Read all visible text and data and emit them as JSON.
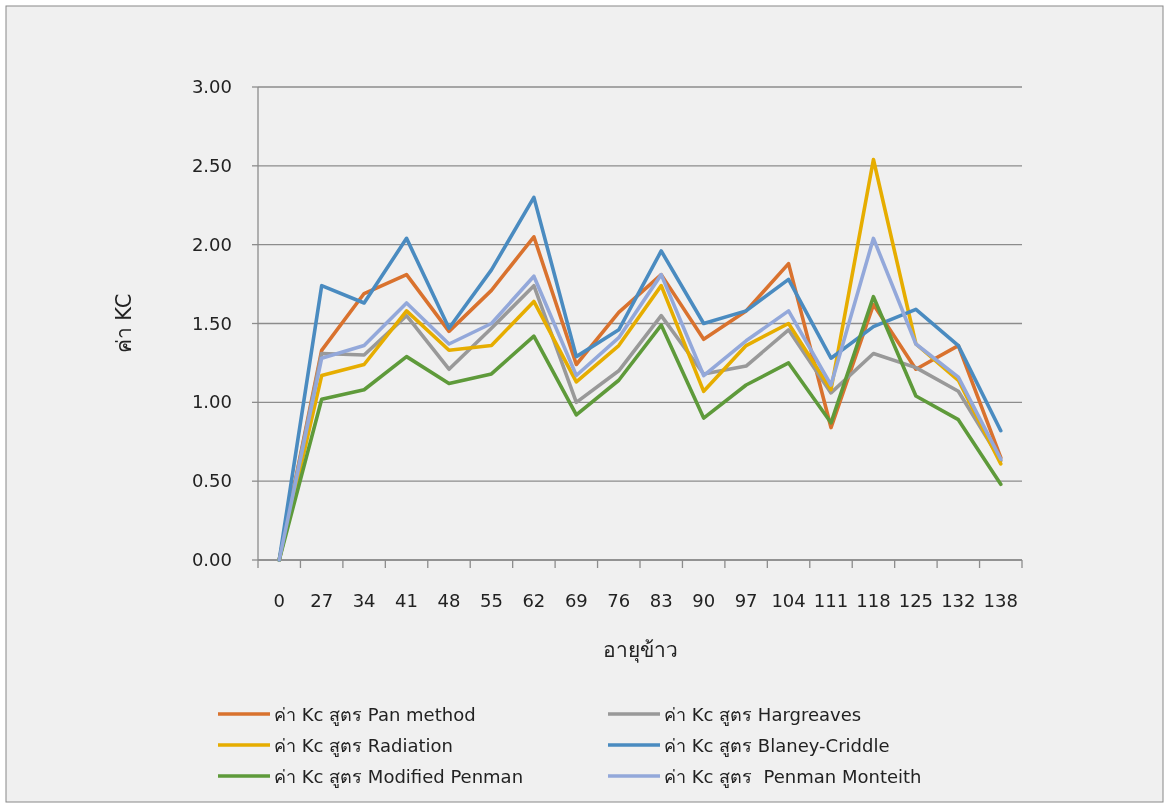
{
  "chart_data": {
    "type": "line",
    "xlabel": "อายุข้าว",
    "ylabel": "ค่า KC",
    "categories": [
      "0",
      "27",
      "34",
      "41",
      "48",
      "55",
      "62",
      "69",
      "76",
      "83",
      "90",
      "97",
      "104",
      "111",
      "118",
      "125",
      "132",
      "138"
    ],
    "ylim": [
      0,
      3
    ],
    "yticks": [
      {
        "value": 0,
        "label": "0.00"
      },
      {
        "value": 0.5,
        "label": "0.50"
      },
      {
        "value": 1,
        "label": "1.00"
      },
      {
        "value": 1.5,
        "label": "1.50"
      },
      {
        "value": 2,
        "label": "2.00"
      },
      {
        "value": 2.5,
        "label": "2.50"
      },
      {
        "value": 3,
        "label": "3.00"
      }
    ],
    "grid": "y",
    "legend": "bottom",
    "marker": "none",
    "line_style": "solid",
    "series": [
      {
        "name": "ค่า Kc สูตร Pan method",
        "color": "#d9722e",
        "values": [
          0,
          1.33,
          1.69,
          1.81,
          1.45,
          1.71,
          2.05,
          1.24,
          1.57,
          1.81,
          1.4,
          1.58,
          1.88,
          0.84,
          1.62,
          1.21,
          1.36,
          0.65
        ]
      },
      {
        "name": "ค่า Kc สูตร Hargreaves",
        "color": "#999999",
        "values": [
          0,
          1.31,
          1.3,
          1.55,
          1.21,
          1.47,
          1.74,
          1.0,
          1.2,
          1.55,
          1.18,
          1.23,
          1.46,
          1.06,
          1.31,
          1.22,
          1.07,
          0.63
        ]
      },
      {
        "name": "ค่า Kc สูตร Radiation",
        "color": "#e6ad00",
        "values": [
          0,
          1.17,
          1.24,
          1.58,
          1.33,
          1.36,
          1.64,
          1.13,
          1.36,
          1.74,
          1.07,
          1.36,
          1.5,
          1.08,
          2.54,
          1.37,
          1.14,
          0.61
        ]
      },
      {
        "name": "ค่า Kc สูตร Blaney-Criddle",
        "color": "#4a8bc0",
        "values": [
          0,
          1.74,
          1.63,
          2.04,
          1.47,
          1.84,
          2.3,
          1.29,
          1.46,
          1.96,
          1.5,
          1.58,
          1.78,
          1.28,
          1.48,
          1.59,
          1.36,
          0.82
        ]
      },
      {
        "name": "ค่า Kc สูตร Modified Penman",
        "color": "#5e9a3a",
        "values": [
          0,
          1.02,
          1.08,
          1.29,
          1.12,
          1.18,
          1.42,
          0.92,
          1.14,
          1.49,
          0.9,
          1.11,
          1.25,
          0.87,
          1.67,
          1.04,
          0.89,
          0.48
        ]
      },
      {
        "name": "ค่า Kc สูตร  Penman Monteith",
        "color": "#93a8da",
        "values": [
          0,
          1.28,
          1.36,
          1.63,
          1.37,
          1.5,
          1.8,
          1.17,
          1.41,
          1.81,
          1.17,
          1.39,
          1.58,
          1.11,
          2.04,
          1.37,
          1.16,
          0.64
        ]
      }
    ]
  }
}
